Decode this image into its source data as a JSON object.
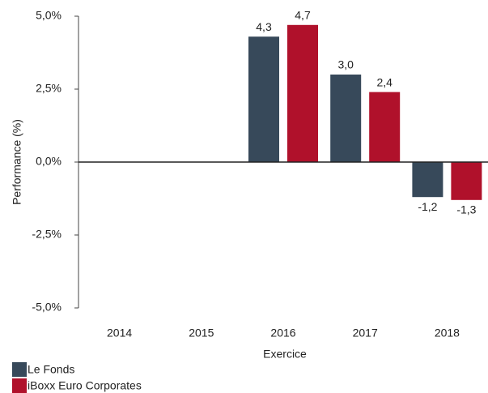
{
  "chart_data": {
    "type": "bar",
    "categories": [
      "2014",
      "2015",
      "2016",
      "2017",
      "2018"
    ],
    "series": [
      {
        "name": "Le Fonds",
        "color": "#37495a",
        "values": [
          null,
          null,
          4.3,
          3.0,
          -1.2
        ],
        "value_labels": [
          null,
          null,
          "4,3",
          "3,0",
          "-1,2"
        ]
      },
      {
        "name": "iBoxx Euro Corporates",
        "color": "#b0112b",
        "values": [
          null,
          null,
          4.7,
          2.4,
          -1.3
        ],
        "value_labels": [
          null,
          null,
          "4,7",
          "2,4",
          "-1,3"
        ]
      }
    ],
    "ylim": [
      -5,
      5
    ],
    "yticks": [
      {
        "value": -5,
        "label": "-5,0%"
      },
      {
        "value": -2.5,
        "label": "-2,5%"
      },
      {
        "value": 0,
        "label": "0,0%"
      },
      {
        "value": 2.5,
        "label": "2,5%"
      },
      {
        "value": 5,
        "label": "5,0%"
      }
    ],
    "ylabel": "Performance (%)",
    "xlabel": "Exercice",
    "legend": "bottom-left"
  }
}
